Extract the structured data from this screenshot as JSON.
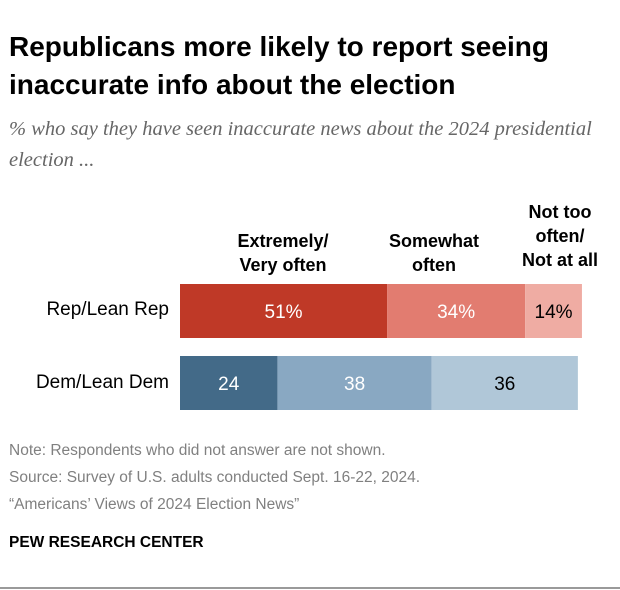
{
  "chart_data": {
    "type": "bar",
    "orientation": "horizontal",
    "stacked": true,
    "title": "Republicans more likely to report seeing inaccurate info about the election",
    "subtitle": "% who say they have seen inaccurate news about the 2024 presidential election ...",
    "categories": [
      "Rep/Lean Rep",
      "Dem/Lean Dem"
    ],
    "series": [
      {
        "name": "Extremely/ Very often",
        "values": [
          51,
          24
        ],
        "labels": [
          "51%",
          "24"
        ]
      },
      {
        "name": "Somewhat often",
        "values": [
          34,
          38
        ],
        "labels": [
          "34%",
          "38"
        ]
      },
      {
        "name": "Not too often/ Not at all",
        "values": [
          14,
          36
        ],
        "labels": [
          "14%",
          "36"
        ]
      }
    ],
    "colors": {
      "Rep/Lean Rep": [
        "#bf3927",
        "#e27c70",
        "#efaca3"
      ],
      "Dem/Lean Dem": [
        "#436a88",
        "#89a8c2",
        "#b0c7d8"
      ]
    },
    "label_colors": {
      "Rep/Lean Rep": [
        "#ffffff",
        "#ffffff",
        "#000000"
      ],
      "Dem/Lean Dem": [
        "#ffffff",
        "#ffffff",
        "#000000"
      ]
    },
    "xlim": [
      0,
      100
    ]
  },
  "legend": {
    "very_often": [
      "Extremely/",
      "Very often"
    ],
    "somewhat": [
      "Somewhat",
      "often"
    ],
    "not_too": [
      "Not too",
      "often/",
      "Not at all"
    ]
  },
  "notes": {
    "note": "Note: Respondents who did not answer are not shown.",
    "source": "Source: Survey of U.S. adults conducted Sept. 16-22, 2024.",
    "report": "“Americans’ Views of 2024 Election News”"
  },
  "footer": "PEW RESEARCH CENTER"
}
